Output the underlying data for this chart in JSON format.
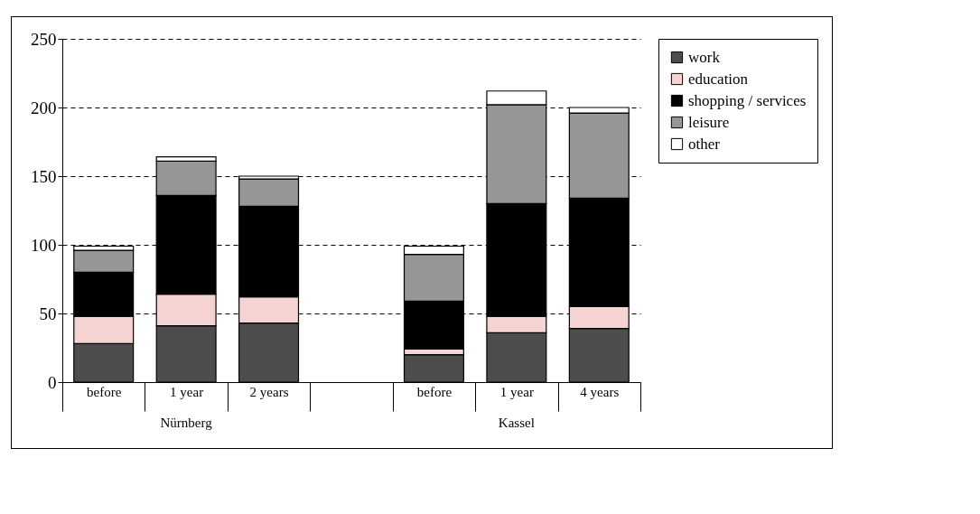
{
  "chart_data": {
    "type": "bar",
    "stacked": true,
    "categories": [
      "before",
      "1 year",
      "2 years",
      null,
      "before",
      "1 year",
      "4 years"
    ],
    "series": [
      {
        "name": "work",
        "color": "#4d4d4d",
        "values": [
          28,
          41,
          43,
          null,
          20,
          36,
          39
        ]
      },
      {
        "name": "education",
        "color": "#f5d3d3",
        "values": [
          20,
          23,
          19,
          null,
          4,
          12,
          16
        ]
      },
      {
        "name": "shopping / services",
        "color": "#000000",
        "values": [
          32,
          72,
          66,
          null,
          35,
          82,
          79
        ]
      },
      {
        "name": "leisure",
        "color": "#969696",
        "values": [
          16,
          25,
          20,
          null,
          34,
          72,
          62
        ]
      },
      {
        "name": "other",
        "color": "#ffffff",
        "values": [
          3,
          3,
          2,
          null,
          6,
          10,
          4
        ]
      }
    ],
    "annotations": [
      "Nürnberg",
      "Kassel"
    ],
    "ylim": [
      0,
      250
    ],
    "yticks": [
      0,
      50,
      100,
      150,
      200,
      250
    ],
    "grid": "y",
    "legend": "right"
  }
}
